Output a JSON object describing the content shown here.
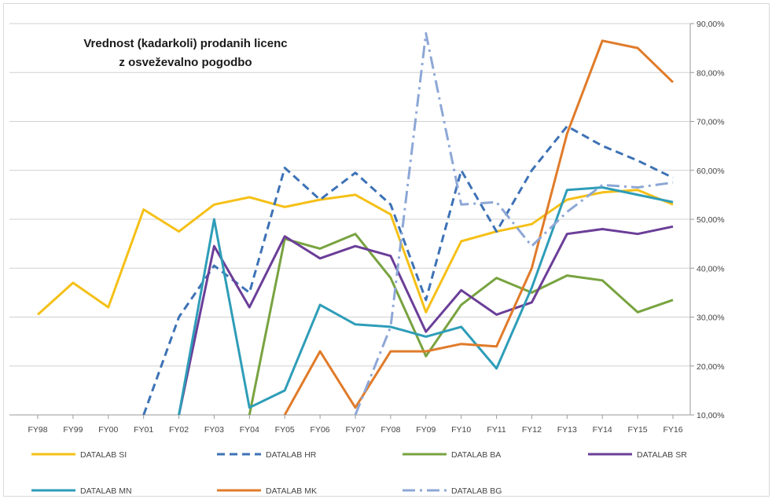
{
  "chart_data": {
    "type": "line",
    "title_lines": [
      "Vrednost (kadarkoli) prodanih licenc",
      "z osveževalno pogodbo"
    ],
    "categories": [
      "FY98",
      "FY99",
      "FY00",
      "FY01",
      "FY02",
      "FY03",
      "FY04",
      "FY05",
      "FY06",
      "FY07",
      "FY08",
      "FY09",
      "FY10",
      "FY11",
      "FY12",
      "FY13",
      "FY14",
      "FY15",
      "FY16"
    ],
    "y_axis": {
      "position": "right",
      "min": 10,
      "max": 90,
      "step": 10,
      "tick_labels": [
        "10,00%",
        "20,00%",
        "30,00%",
        "40,00%",
        "50,00%",
        "60,00%",
        "70,00%",
        "80,00%",
        "90,00%"
      ]
    },
    "grid": true,
    "legend_position": "bottom",
    "series": [
      {
        "name": "DATALAB SI",
        "color": "#f5c017",
        "style": "solid",
        "values": [
          30.5,
          37,
          32,
          52,
          47.5,
          53,
          54.5,
          52.5,
          54,
          55,
          51,
          31,
          45.5,
          47.5,
          49,
          54,
          55.5,
          56,
          53
        ]
      },
      {
        "name": "DATALAB HR",
        "color": "#3d72b5",
        "style": "dash",
        "values": [
          null,
          null,
          null,
          10,
          30,
          40.5,
          35,
          60.5,
          54,
          59.5,
          53,
          33.5,
          60,
          47.5,
          60,
          69,
          65,
          62,
          58.5
        ]
      },
      {
        "name": "DATALAB BA",
        "color": "#78a340",
        "style": "solid",
        "values": [
          null,
          null,
          null,
          null,
          null,
          null,
          10,
          46,
          44,
          47,
          38,
          22,
          32.5,
          38,
          35,
          38.5,
          37.5,
          31,
          33.5
        ]
      },
      {
        "name": "DATALAB SR",
        "color": "#6b3e98",
        "style": "solid",
        "values": [
          null,
          null,
          null,
          null,
          10,
          44.5,
          32,
          46.5,
          42,
          44.5,
          42.5,
          27,
          35.5,
          30.5,
          33,
          47,
          48,
          47,
          48.5
        ]
      },
      {
        "name": "DATALAB MN",
        "color": "#2e9db8",
        "style": "solid",
        "values": [
          null,
          null,
          null,
          null,
          10,
          50,
          11.5,
          15,
          32.5,
          28.5,
          28,
          26,
          28,
          19.5,
          36,
          56,
          56.5,
          55,
          53.5
        ]
      },
      {
        "name": "DATALAB MK",
        "color": "#e07b2a",
        "style": "solid",
        "values": [
          null,
          null,
          null,
          null,
          null,
          null,
          null,
          10,
          23,
          11.5,
          23,
          23,
          24.5,
          24,
          40,
          67.5,
          86.5,
          85,
          78
        ]
      },
      {
        "name": "DATALAB BG",
        "color": "#8da7d6",
        "style": "dashdot",
        "values": [
          null,
          null,
          null,
          null,
          null,
          null,
          null,
          null,
          null,
          10,
          28,
          88,
          53,
          53.5,
          44.5,
          51.5,
          57,
          56.5,
          57.5
        ]
      }
    ]
  }
}
